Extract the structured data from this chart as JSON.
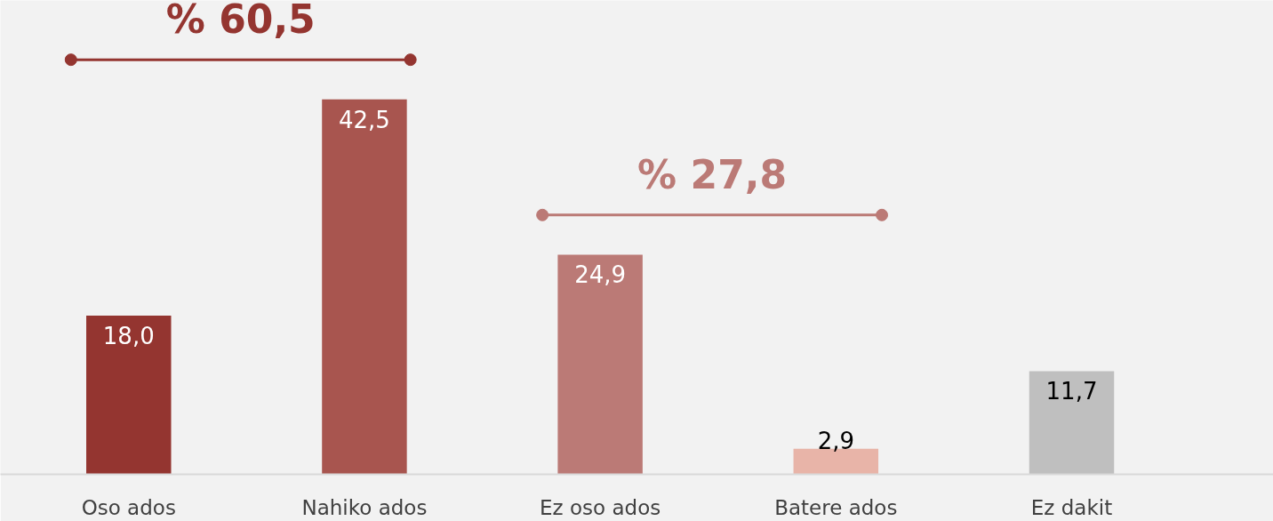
{
  "chart_data": {
    "type": "bar",
    "categories": [
      "Oso ados",
      "Nahiko ados",
      "Ez oso ados",
      "Batere ados",
      "Ez dakit"
    ],
    "values": [
      18.0,
      42.5,
      24.9,
      2.9,
      11.7
    ],
    "colors": [
      "#943530",
      "#a8554f",
      "#bb7a76",
      "#e8b4a8",
      "#bfbfbf"
    ],
    "value_labels": [
      "18,0",
      "42,5",
      "24,9",
      "2,9",
      "11,7"
    ],
    "annotations": [
      "% 60,5",
      "% 27,8"
    ],
    "grid": false
  }
}
